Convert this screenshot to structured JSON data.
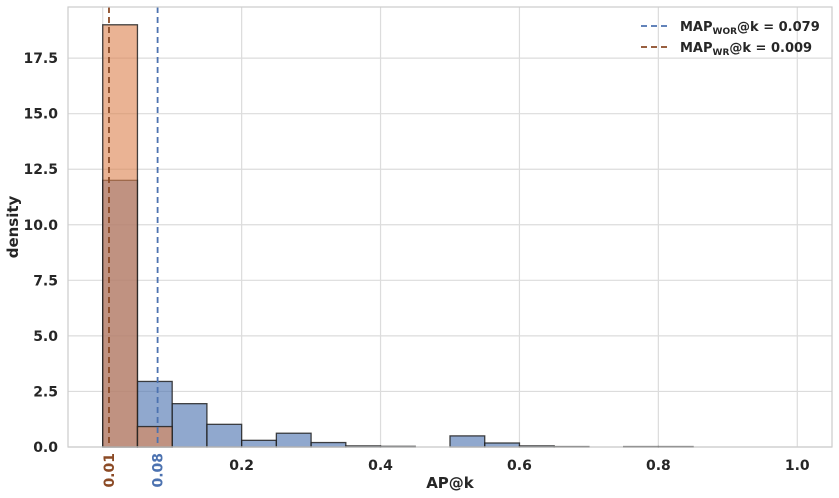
{
  "chart_data": {
    "type": "histogram",
    "xlabel": "AP@k",
    "ylabel": "density",
    "xlim": [
      -0.05,
      1.05
    ],
    "ylim": [
      0,
      19.8
    ],
    "grid": true,
    "legend_position": "top-right",
    "xticks": [
      {
        "value": 0.2,
        "label": "0.2"
      },
      {
        "value": 0.4,
        "label": "0.4"
      },
      {
        "value": 0.6,
        "label": "0.6"
      },
      {
        "value": 0.8,
        "label": "0.8"
      },
      {
        "value": 1.0,
        "label": "1.0"
      }
    ],
    "yticks": [
      {
        "value": 0,
        "label": "0.0"
      },
      {
        "value": 2.5,
        "label": "2.5"
      },
      {
        "value": 5,
        "label": "5.0"
      },
      {
        "value": 7.5,
        "label": "7.5"
      },
      {
        "value": 10,
        "label": "10.0"
      },
      {
        "value": 12.5,
        "label": "12.5"
      },
      {
        "value": 15,
        "label": "15.0"
      },
      {
        "value": 17.5,
        "label": "17.5"
      }
    ],
    "series": [
      {
        "name": "WOR",
        "color": "#4c72b0",
        "bins": [
          {
            "x0": 0.0,
            "x1": 0.05,
            "density": 12.0
          },
          {
            "x0": 0.05,
            "x1": 0.1,
            "density": 2.95
          },
          {
            "x0": 0.1,
            "x1": 0.15,
            "density": 1.95
          },
          {
            "x0": 0.15,
            "x1": 0.2,
            "density": 1.02
          },
          {
            "x0": 0.2,
            "x1": 0.25,
            "density": 0.3
          },
          {
            "x0": 0.25,
            "x1": 0.3,
            "density": 0.62
          },
          {
            "x0": 0.3,
            "x1": 0.35,
            "density": 0.2
          },
          {
            "x0": 0.35,
            "x1": 0.4,
            "density": 0.05
          },
          {
            "x0": 0.4,
            "x1": 0.45,
            "density": 0.03
          },
          {
            "x0": 0.45,
            "x1": 0.5,
            "density": 0.0
          },
          {
            "x0": 0.5,
            "x1": 0.55,
            "density": 0.5
          },
          {
            "x0": 0.55,
            "x1": 0.6,
            "density": 0.18
          },
          {
            "x0": 0.6,
            "x1": 0.65,
            "density": 0.05
          },
          {
            "x0": 0.65,
            "x1": 0.7,
            "density": 0.02
          },
          {
            "x0": 0.7,
            "x1": 0.75,
            "density": 0.0
          },
          {
            "x0": 0.75,
            "x1": 0.8,
            "density": 0.02
          },
          {
            "x0": 0.8,
            "x1": 0.85,
            "density": 0.02
          }
        ]
      },
      {
        "name": "WR",
        "color": "#dd8452",
        "bins": [
          {
            "x0": 0.0,
            "x1": 0.05,
            "density": 19.0
          },
          {
            "x0": 0.05,
            "x1": 0.1,
            "density": 0.92
          }
        ]
      }
    ],
    "overlap_color": "#a8705f",
    "mean_lines": [
      {
        "series": "WOR",
        "value": 0.079,
        "color": "#4c72b0",
        "tick_label": "0.08",
        "legend_main": "MAP",
        "legend_sub": "WOR",
        "legend_rest": "@k = 0.079"
      },
      {
        "series": "WR",
        "value": 0.009,
        "color": "#8b4a25",
        "tick_label": "0.01",
        "legend_main": "MAP",
        "legend_sub": "WR",
        "legend_rest": "@k = 0.009"
      }
    ]
  }
}
